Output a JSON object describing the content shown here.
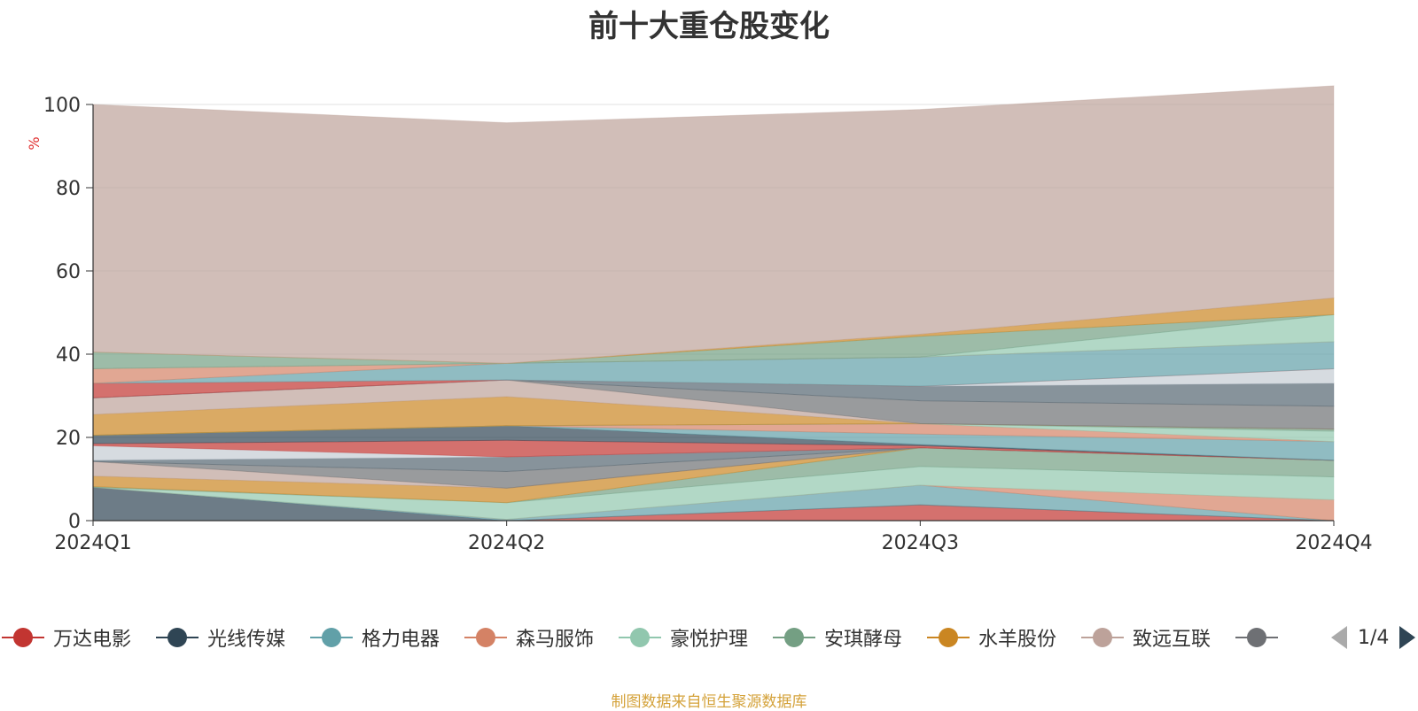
{
  "title": "前十大重仓股变化",
  "source_note": "制图数据来自恒生聚源数据库",
  "pager": {
    "text": "1/4",
    "prev_color": "#aaaaaa",
    "next_color": "#2f4554"
  },
  "chart_data": {
    "type": "area",
    "stacked": true,
    "ylabel": "%",
    "ylabel_color": "#e03030",
    "ylim": [
      0,
      100
    ],
    "yticks": [
      0,
      20,
      40,
      60,
      80,
      100
    ],
    "grid": true,
    "categories": [
      "2024Q1",
      "2024Q2",
      "2024Q3",
      "2024Q4"
    ],
    "legend_position": "bottom",
    "series": [
      {
        "name": "万达电影",
        "color": "#c23531",
        "values": [
          0,
          0,
          3.8,
          0
        ]
      },
      {
        "name": "光线传媒",
        "color": "#2f4554",
        "values": [
          8.0,
          0,
          0,
          0
        ]
      },
      {
        "name": "格力电器",
        "color": "#61a0a8",
        "values": [
          0,
          0.3,
          4.7,
          0
        ]
      },
      {
        "name": "森马服饰",
        "color": "#d48265",
        "values": [
          0,
          0,
          0,
          5.0
        ]
      },
      {
        "name": "豪悦护理",
        "color": "#91c7ae",
        "values": [
          0,
          4.0,
          4.5,
          5.5
        ]
      },
      {
        "name": "安琪酵母",
        "color": "#749f83",
        "values": [
          0.2,
          0,
          4.5,
          4.0
        ]
      },
      {
        "name": "水羊股份",
        "color": "#ca8622",
        "values": [
          2.5,
          3.5,
          0,
          0
        ]
      },
      {
        "name": "致远互联",
        "color": "#bda29a",
        "values": [
          3.5,
          0,
          0,
          0
        ]
      },
      {
        "name": "",
        "color": "#6e7074",
        "values": [
          0,
          4.0,
          0,
          0
        ]
      },
      {
        "name": "",
        "color": "#546570",
        "values": [
          0.3,
          3.5,
          0,
          0
        ]
      },
      {
        "name": "",
        "color": "#c4ccd3",
        "values": [
          3.5,
          0,
          0,
          0
        ]
      },
      {
        "name": "",
        "color": "#c23531",
        "values": [
          0.5,
          4.0,
          0.5,
          0
        ]
      },
      {
        "name": "",
        "color": "#2f4554",
        "values": [
          2.0,
          3.5,
          0.3,
          0
        ]
      },
      {
        "name": "",
        "color": "#61a0a8",
        "values": [
          0,
          0,
          2.5,
          4.5
        ]
      },
      {
        "name": "",
        "color": "#d48265",
        "values": [
          0,
          0,
          2.5,
          0
        ]
      },
      {
        "name": "",
        "color": "#91c7ae",
        "values": [
          0,
          0,
          0,
          2.5
        ]
      },
      {
        "name": "",
        "color": "#749f83",
        "values": [
          0,
          0,
          0,
          0.5
        ]
      },
      {
        "name": "",
        "color": "#ca8622",
        "values": [
          5.0,
          7.0,
          0,
          0
        ]
      },
      {
        "name": "",
        "color": "#bda29a",
        "values": [
          4.0,
          4.0,
          0,
          0
        ]
      },
      {
        "name": "",
        "color": "#6e7074",
        "values": [
          0,
          0,
          5.5,
          5.5
        ]
      },
      {
        "name": "",
        "color": "#546570",
        "values": [
          0,
          0,
          3.5,
          5.5
        ]
      },
      {
        "name": "",
        "color": "#c4ccd3",
        "values": [
          0,
          0,
          0,
          3.5
        ]
      },
      {
        "name": "",
        "color": "#c23531",
        "values": [
          3.5,
          0,
          0,
          0
        ]
      },
      {
        "name": "",
        "color": "#61a0a8",
        "values": [
          0,
          4.0,
          7.0,
          6.5
        ]
      },
      {
        "name": "",
        "color": "#d48265",
        "values": [
          3.5,
          0,
          0,
          0
        ]
      },
      {
        "name": "",
        "color": "#91c7ae",
        "values": [
          0,
          0,
          0,
          6.5
        ]
      },
      {
        "name": "",
        "color": "#749f83",
        "values": [
          4.0,
          0,
          5.0,
          0
        ]
      },
      {
        "name": "",
        "color": "#ca8622",
        "values": [
          0,
          0,
          0.5,
          4.0
        ]
      },
      {
        "name": "",
        "color": "#bda29a",
        "values": [
          59.5,
          57.8,
          54.0,
          51.0
        ]
      }
    ]
  }
}
